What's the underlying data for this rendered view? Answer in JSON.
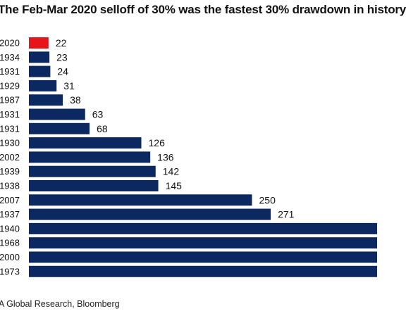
{
  "chart_data": {
    "type": "bar",
    "orientation": "horizontal",
    "title": "The Feb-Mar 2020 selloff of 30% was the fastest 30% drawdown in history",
    "source": "A Global Research, Bloomberg",
    "categories": [
      "2020",
      "1934",
      "1931",
      "1929",
      "1987",
      "1931",
      "1931",
      "1930",
      "2002",
      "1939",
      "1938",
      "2007",
      "1937",
      "1940",
      "1968",
      "2000",
      "1973"
    ],
    "values": [
      22,
      23,
      24,
      31,
      38,
      63,
      68,
      126,
      136,
      142,
      145,
      250,
      271,
      null,
      null,
      null,
      null
    ],
    "value_labels": [
      "22",
      "23",
      "24",
      "31",
      "38",
      "63",
      "68",
      "126",
      "136",
      "142",
      "145",
      "250",
      "271",
      "",
      "",
      "",
      ""
    ],
    "highlight_index": 0,
    "colors": {
      "highlight": "#e8141c",
      "bar": "#0b2860",
      "text": "#111111"
    }
  }
}
